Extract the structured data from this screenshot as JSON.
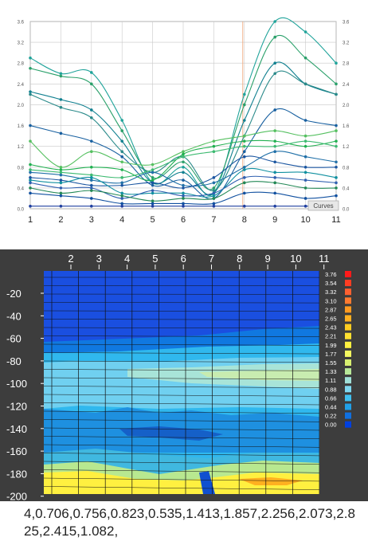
{
  "chart_data": [
    {
      "type": "line",
      "x": [
        1,
        2,
        3,
        4,
        5,
        6,
        7,
        8,
        9,
        10,
        11
      ],
      "ylim": [
        0,
        3.6
      ],
      "yticks": [
        "0.0",
        "0.4",
        "0.8",
        "1.2",
        "1.6",
        "2.0",
        "2.4",
        "2.8",
        "3.2",
        "3.6"
      ],
      "xticks": [
        "1",
        "2",
        "3",
        "4",
        "5",
        "6",
        "7",
        "8",
        "9",
        "10",
        "11"
      ],
      "grid": true,
      "legend_label": "Curves",
      "series": [
        {
          "values": [
            2.9,
            2.6,
            2.62,
            1.7,
            0.5,
            0.8,
            0.3,
            2.2,
            3.7,
            3.4,
            2.8
          ]
        },
        {
          "values": [
            2.7,
            2.55,
            2.4,
            1.5,
            0.6,
            0.9,
            0.4,
            2.0,
            3.3,
            2.9,
            2.4
          ]
        },
        {
          "values": [
            2.25,
            2.1,
            1.9,
            1.3,
            0.5,
            0.7,
            0.3,
            1.7,
            2.8,
            2.4,
            2.2
          ]
        },
        {
          "values": [
            2.2,
            1.95,
            1.75,
            1.1,
            0.7,
            1.0,
            0.35,
            1.4,
            2.6,
            2.4,
            2.2
          ]
        },
        {
          "values": [
            1.6,
            1.45,
            1.3,
            1.0,
            0.45,
            0.55,
            0.2,
            1.1,
            1.9,
            1.7,
            1.6
          ]
        },
        {
          "values": [
            1.3,
            0.8,
            1.1,
            0.9,
            0.85,
            1.1,
            1.3,
            1.4,
            1.5,
            1.4,
            1.5
          ]
        },
        {
          "values": [
            0.85,
            0.75,
            0.8,
            0.75,
            0.55,
            1.05,
            1.2,
            1.3,
            1.3,
            1.2,
            1.3
          ]
        },
        {
          "values": [
            0.75,
            0.7,
            0.65,
            0.6,
            0.75,
            1.0,
            1.1,
            1.2,
            1.2,
            1.3,
            1.2
          ]
        },
        {
          "values": [
            0.7,
            0.65,
            0.55,
            0.5,
            0.7,
            0.45,
            0.5,
            0.8,
            1.1,
            1.0,
            0.9
          ]
        },
        {
          "values": [
            0.6,
            0.55,
            0.45,
            0.45,
            0.5,
            0.4,
            0.6,
            1.0,
            0.9,
            0.8,
            0.8
          ]
        },
        {
          "values": [
            0.55,
            0.5,
            0.6,
            0.3,
            0.3,
            0.3,
            0.25,
            0.75,
            0.7,
            0.7,
            0.6
          ]
        },
        {
          "values": [
            0.5,
            0.4,
            0.4,
            0.2,
            0.35,
            0.25,
            0.3,
            0.6,
            0.6,
            0.55,
            0.5
          ]
        },
        {
          "values": [
            0.4,
            0.3,
            0.35,
            0.25,
            0.15,
            0.2,
            0.2,
            0.5,
            0.5,
            0.4,
            0.4
          ]
        },
        {
          "values": [
            0.3,
            0.25,
            0.2,
            0.1,
            0.1,
            0.1,
            0.1,
            0.3,
            0.3,
            0.2,
            0.25
          ]
        },
        {
          "values": [
            0.05,
            0.05,
            0.05,
            0.05,
            0.05,
            0.05,
            0.05,
            0.05,
            0.05,
            0.05,
            0.05
          ]
        }
      ],
      "series_colors": [
        "#1fa39a",
        "#2aa06a",
        "#118090",
        "#2a8a8a",
        "#1860a0",
        "#55c060",
        "#20b050",
        "#3cba70",
        "#2070a8",
        "#1a55a0",
        "#1090a0",
        "#3060b0",
        "#228855",
        "#1050a0",
        "#2040a0"
      ]
    },
    {
      "type": "heatmap",
      "xticks": [
        "2",
        "3",
        "4",
        "5",
        "6",
        "7",
        "8",
        "9",
        "10",
        "11"
      ],
      "yticks": [
        "-20",
        "-40",
        "-60",
        "-80",
        "-100",
        "-120",
        "-140",
        "-160",
        "-180",
        "-200"
      ],
      "colorbar_labels": [
        "3.76",
        "3.54",
        "3.32",
        "3.10",
        "2.87",
        "2.65",
        "2.43",
        "2.21",
        "1.99",
        "1.77",
        "1.55",
        "1.33",
        "1.11",
        "0.88",
        "0.66",
        "0.44",
        "0.22",
        "0.00"
      ],
      "colorbar_colors": [
        "#ff1a1a",
        "#ff3d22",
        "#ff6030",
        "#ff7a30",
        "#ff9a20",
        "#ffb020",
        "#ffcc20",
        "#ffe030",
        "#fff040",
        "#f4f860",
        "#d8f070",
        "#b8e898",
        "#a0e0d8",
        "#80d8f0",
        "#40c0f0",
        "#20a0e8",
        "#1070e0",
        "#0040e0"
      ]
    }
  ],
  "footer_text": "4,0.706,0.756,0.823,0.535,1.413,1.857,2.256,2.073,2.825,2.415,1.082,"
}
